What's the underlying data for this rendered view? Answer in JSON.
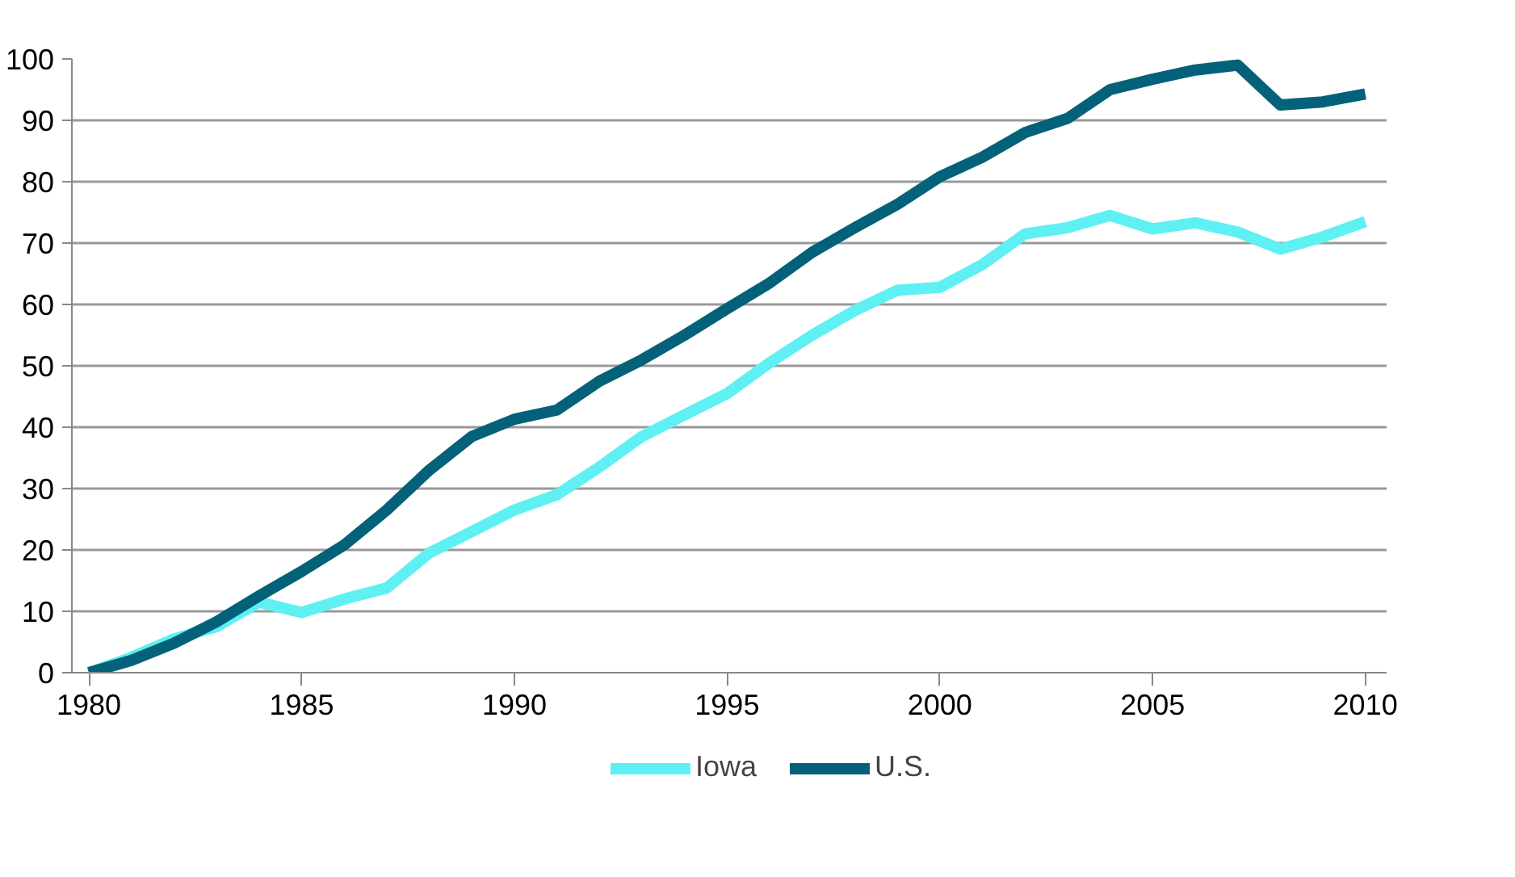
{
  "chart_data": {
    "type": "line",
    "x": [
      1980,
      1981,
      1982,
      1983,
      1984,
      1985,
      1986,
      1987,
      1988,
      1989,
      1990,
      1991,
      1992,
      1993,
      1994,
      1995,
      1996,
      1997,
      1998,
      1999,
      2000,
      2001,
      2002,
      2003,
      2004,
      2005,
      2006,
      2007,
      2008,
      2009,
      2010
    ],
    "series": [
      {
        "name": "Iowa",
        "color": "#5ff0f4",
        "values": [
          0,
          2.5,
          5.5,
          7.5,
          11.5,
          9.8,
          12,
          13.8,
          19.5,
          23,
          26.5,
          29,
          33.5,
          38.5,
          42,
          45.5,
          50.5,
          55,
          59,
          62.3,
          62.8,
          66.5,
          71.5,
          72.5,
          74.5,
          72.3,
          73.3,
          71.8,
          69,
          71,
          73.5
        ]
      },
      {
        "name": "U.S.",
        "color": "#03627a",
        "values": [
          0,
          2,
          4.8,
          8.3,
          12.5,
          16.5,
          20.8,
          26.5,
          33,
          38.5,
          41.3,
          42.8,
          47.5,
          51,
          55,
          59.3,
          63.5,
          68.5,
          72.5,
          76.3,
          80.8,
          84,
          88,
          90.3,
          95,
          96.7,
          98.2,
          99,
          92.5,
          93,
          94.3
        ]
      }
    ],
    "xlim": [
      1979.6,
      2010.5
    ],
    "xticks": [
      1980,
      1985,
      1990,
      1995,
      2000,
      2005,
      2010
    ],
    "ylim": [
      0,
      100
    ],
    "yticks": [
      0,
      10,
      20,
      30,
      40,
      50,
      60,
      70,
      80,
      90,
      100
    ],
    "grid": "y",
    "legend": "bottom",
    "marker": "none",
    "line_style": "solid"
  }
}
